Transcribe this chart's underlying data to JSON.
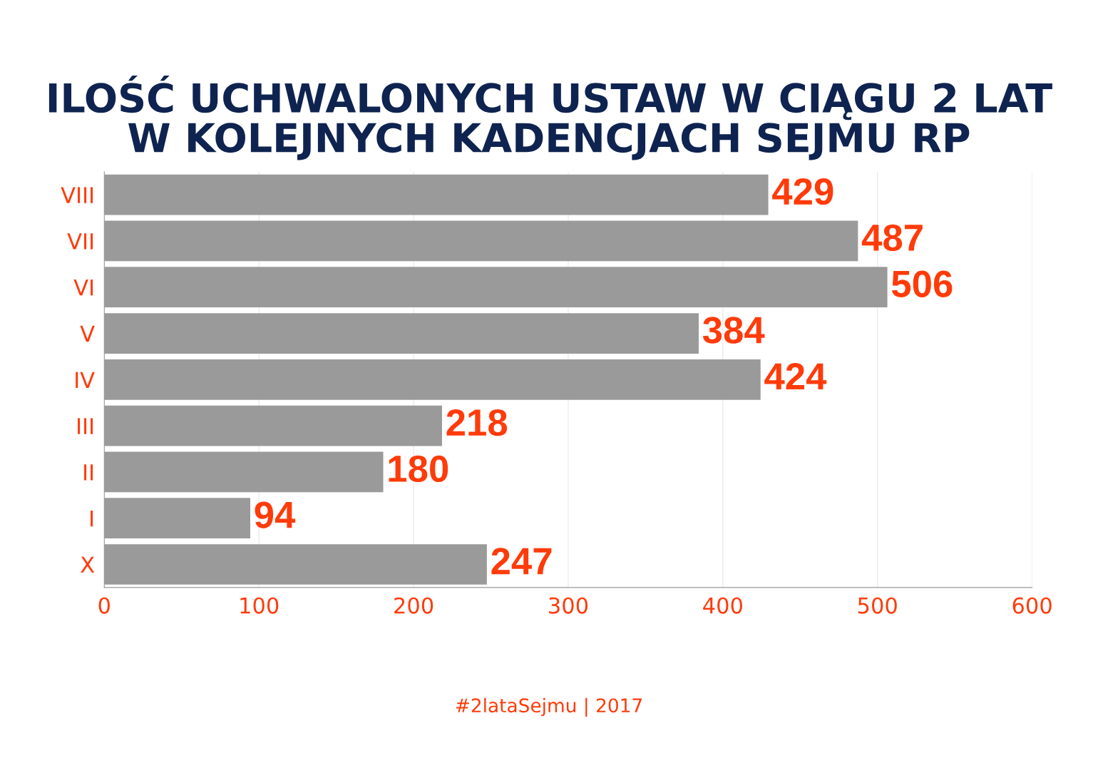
{
  "chart_data": {
    "type": "bar",
    "orientation": "horizontal",
    "title": "ILOŚĆ UCHWALONYCH USTAW W CIĄGU 2 LAT\nW KOLEJNYCH KADENCJACH SEJMU RP",
    "categories": [
      "VIII",
      "VII",
      "VI",
      "V",
      "IV",
      "III",
      "II",
      "I",
      "X"
    ],
    "values": [
      429,
      487,
      506,
      384,
      424,
      218,
      180,
      94,
      247
    ],
    "color": "#9a9a9a",
    "xlim": [
      0,
      600
    ],
    "xticks": [
      0,
      100,
      200,
      300,
      400,
      500,
      600
    ],
    "grid": "x",
    "data_labels": true,
    "annotations": [
      "#2lataSejmu | 2017"
    ]
  }
}
